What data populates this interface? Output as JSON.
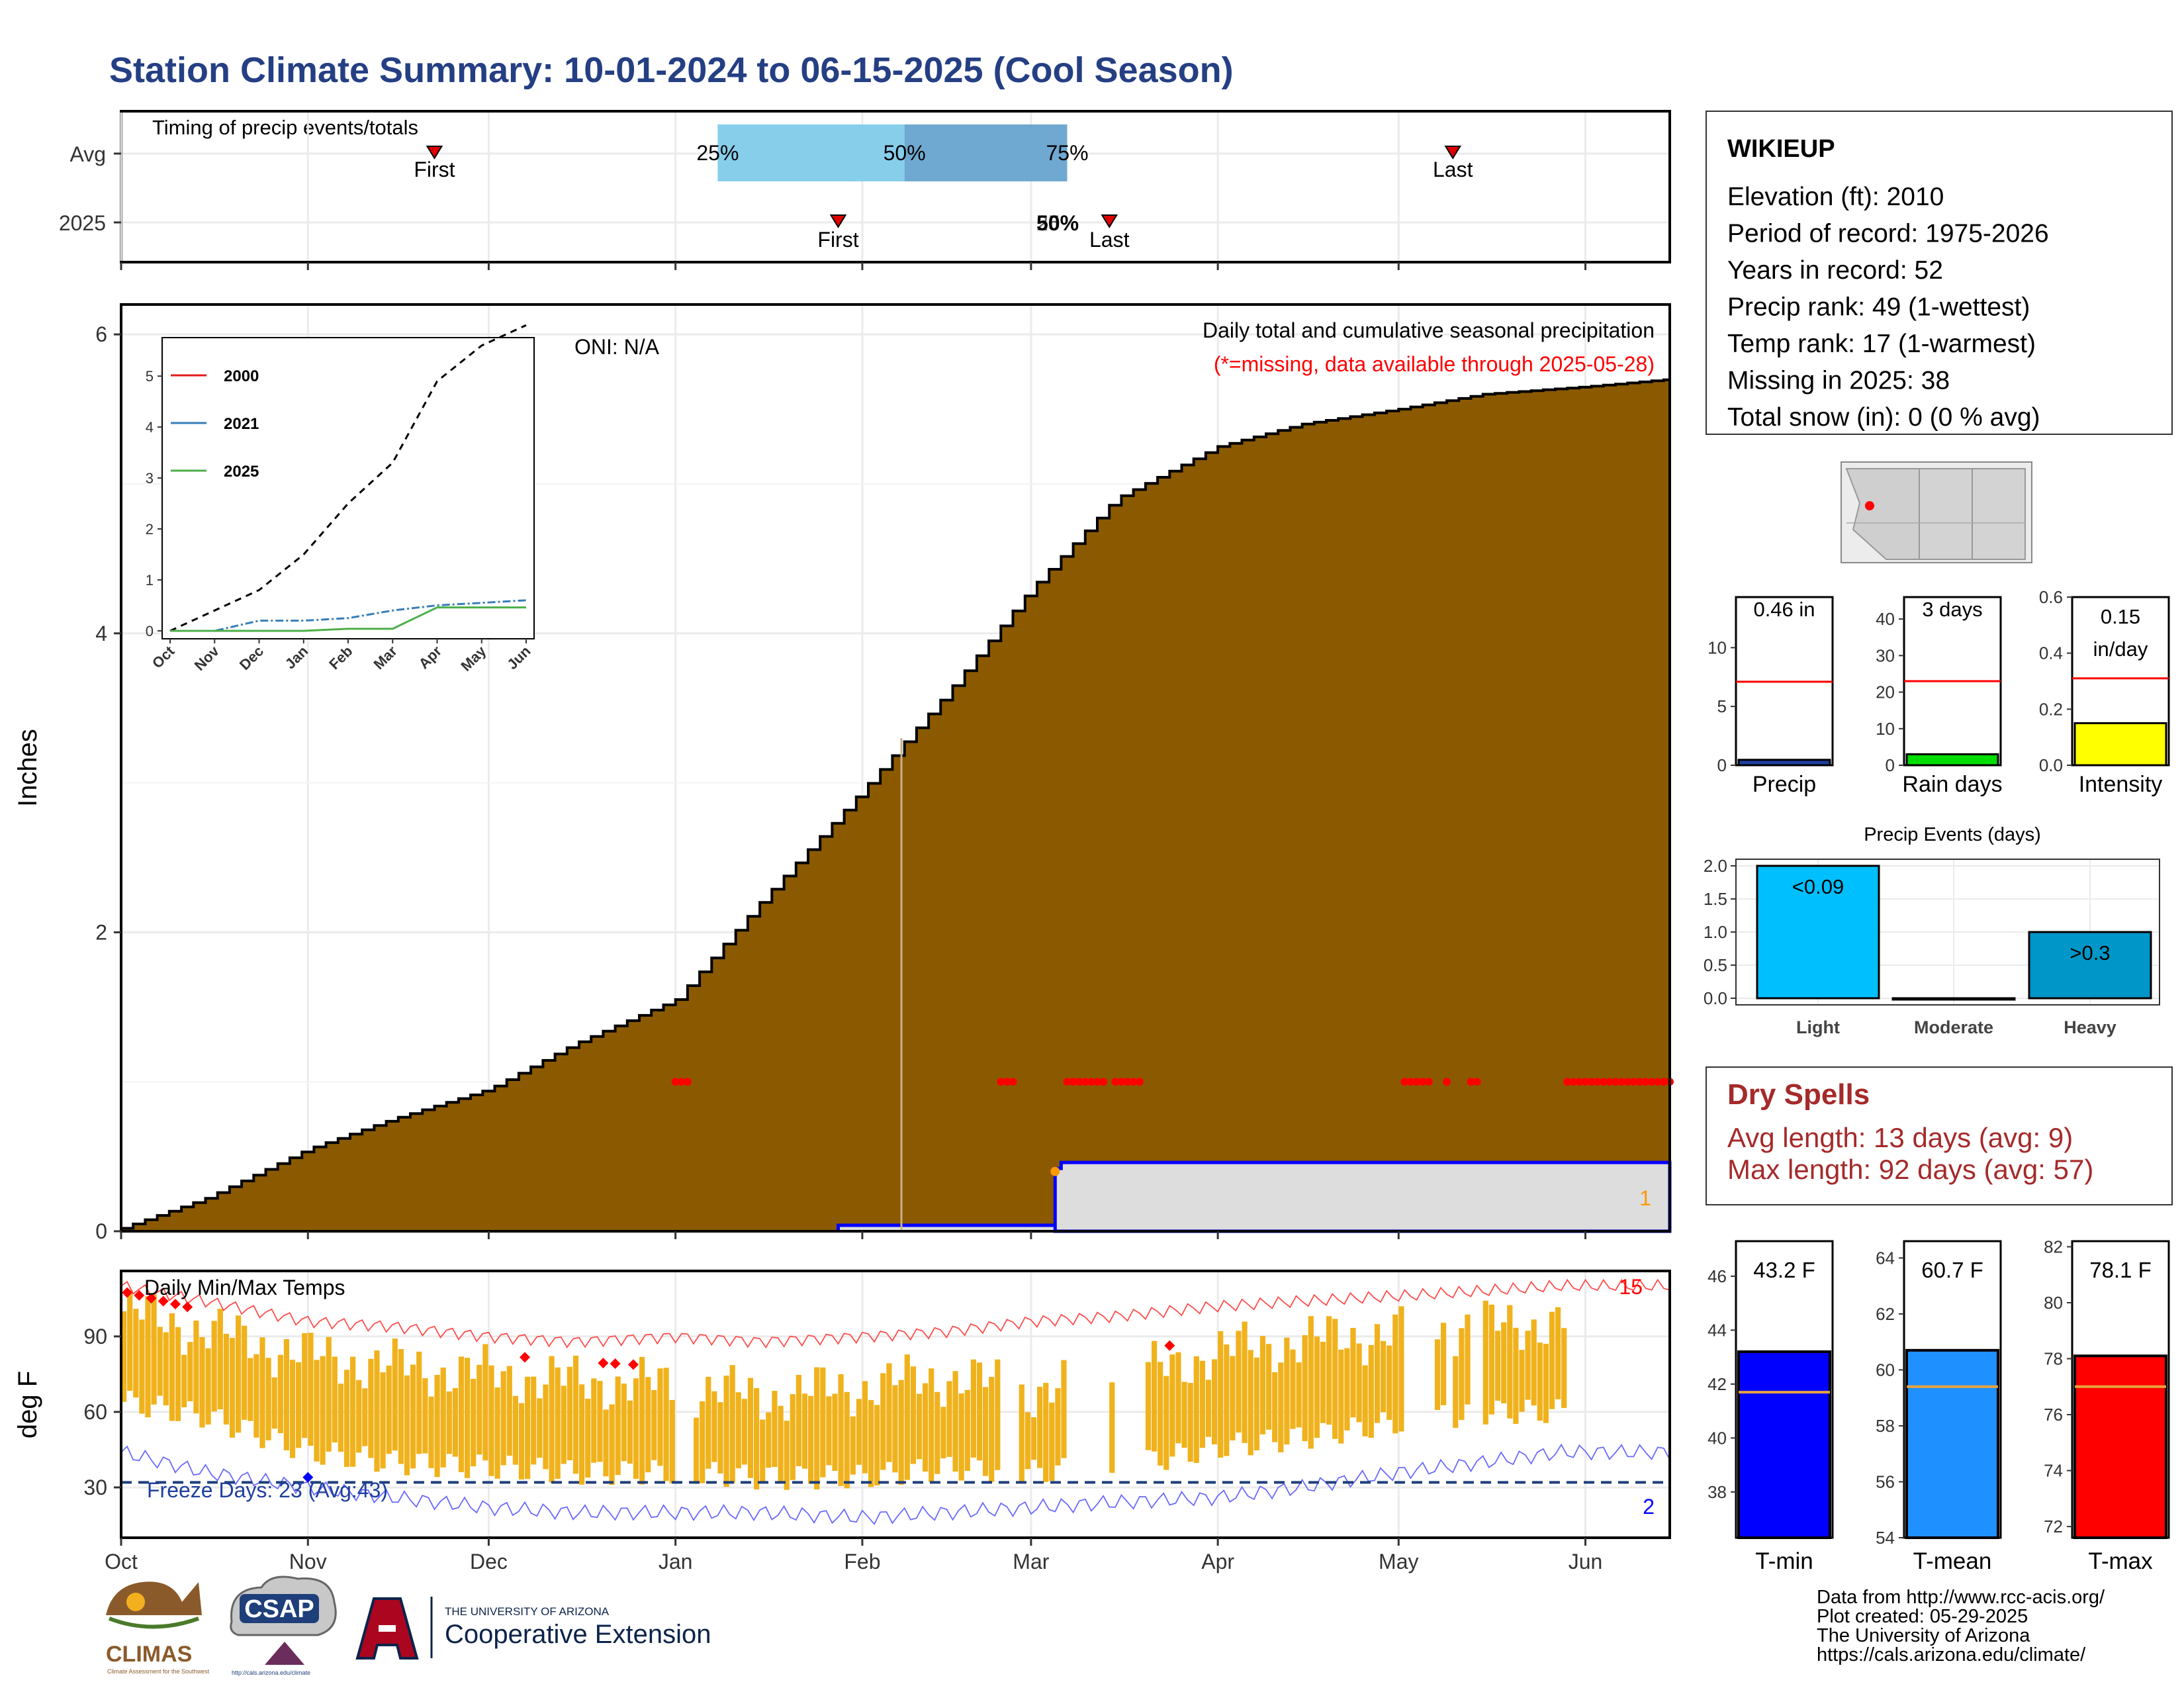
{
  "title": "Station Climate Summary: 10-01-2024 to 06-15-2025 (Cool Season)",
  "colors": {
    "title": "#253f84",
    "precip_fill": "#8b5a00",
    "dry_spell_title": "#a52a2a",
    "missing": "#ff0000",
    "avg_line": "#ff0000",
    "temp_bar": "#f0b21c",
    "record_high": "#ff0000",
    "record_low": "#0000ff",
    "freeze_line": "#1f3f7a",
    "blue_precip": "#0000ff",
    "light_blue_box": "#87ceeb",
    "mid_blue_box": "#6fa8d0"
  },
  "timing_panel": {
    "label": "Timing of precip events/totals",
    "rows": [
      "Avg",
      "2025"
    ],
    "avg": {
      "first_label": "First",
      "first_date": "2024-11-22",
      "last_label": "Last",
      "last_date": "2025-05-10",
      "q25": "2025-01-08",
      "q50": "2025-02-08",
      "q75": "2025-03-07",
      "q25_label": "25%",
      "q50_label": "50%",
      "q75_label": "75%"
    },
    "y2025": {
      "first_label": "First",
      "first_date": "2025-01-28",
      "last_label": "Last",
      "last_date": "2025-03-14",
      "overlap_label": "50%",
      "overlap_label2": "25%"
    }
  },
  "precip_panel": {
    "ylabel": "Inches",
    "subtitle": "Daily total and cumulative seasonal precipitation",
    "missing_note": "(*=missing, data available through 2025-05-28)",
    "oni": "ONI: N/A",
    "count_label": "1",
    "yticks": [
      "0",
      "2",
      "4",
      "6"
    ],
    "ylim": [
      0,
      6.2
    ]
  },
  "temp_panel": {
    "label": "Daily Min/Max Temps",
    "ylabel": "deg F",
    "yticks": [
      "30",
      "60",
      "90"
    ],
    "freeze_label": "Freeze Days: 23 (Avg:43)",
    "record_high_count": "15",
    "record_low_count": "2",
    "freeze_temp": 32,
    "ylim": [
      10,
      116
    ]
  },
  "x_axis": {
    "months": [
      "Oct",
      "Nov",
      "Dec",
      "Jan",
      "Feb",
      "Mar",
      "Apr",
      "May",
      "Jun"
    ],
    "start": "2024-10-01",
    "end": "2025-06-15"
  },
  "inset": {
    "legend": [
      "2000",
      "2021",
      "2025"
    ],
    "legend_colors": [
      "#e41a1c",
      "#377eb8",
      "#4daf4a"
    ],
    "months": [
      "Oct",
      "Nov",
      "Dec",
      "Jan",
      "Feb",
      "Mar",
      "Apr",
      "May",
      "Jun"
    ],
    "yticks": [
      "0",
      "1",
      "2",
      "3",
      "4",
      "5"
    ]
  },
  "station_box": {
    "name": "WIKIEUP",
    "lines": [
      "Elevation (ft): 2010",
      "Period of record: 1975-2026",
      "Years in record: 52",
      "Precip rank: 49 (1-wettest)",
      "Temp rank: 17 (1-warmest)",
      "Missing in 2025: 38",
      "Total snow (in): 0 (0 % avg)"
    ]
  },
  "summary_bars": [
    {
      "name": "Precip",
      "label": "0.46 in",
      "label2": "",
      "value": 0.46,
      "avg": 7.1,
      "ymax": 14.3,
      "yticks": [
        "0",
        "5",
        "10"
      ],
      "tick_values": [
        0,
        5,
        10
      ],
      "color": "#1f3f9f"
    },
    {
      "name": "Rain days",
      "label": "3 days",
      "label2": "",
      "value": 3,
      "avg": 23,
      "ymax": 46,
      "yticks": [
        "0",
        "10",
        "20",
        "30",
        "40"
      ],
      "tick_values": [
        0,
        10,
        20,
        30,
        40
      ],
      "color": "#00dd00"
    },
    {
      "name": "Intensity",
      "label": "0.15",
      "label2": "in/day",
      "value": 0.15,
      "avg": 0.31,
      "ymax": 0.6,
      "yticks": [
        "0.0",
        "0.2",
        "0.4",
        "0.6"
      ],
      "tick_values": [
        0,
        0.2,
        0.4,
        0.6
      ],
      "color": "#ffff00"
    }
  ],
  "precip_events": {
    "title": "Precip Events (days)",
    "categories": [
      "Light",
      "Moderate",
      "Heavy"
    ],
    "values": [
      2,
      0,
      1
    ],
    "labels": [
      "<0.09",
      "",
      ">0.3"
    ],
    "colors": [
      "#00bfff",
      "#000000",
      "#0096c8"
    ],
    "yticks": [
      "0.0",
      "0.5",
      "1.0",
      "1.5",
      "2.0"
    ],
    "ylim": [
      0,
      2.1
    ]
  },
  "dry_spells": {
    "title": "Dry Spells",
    "avg_line": "Avg length: 13 days (avg: 9)",
    "max_line": "Max length: 92 days (avg: 57)"
  },
  "temp_bars": [
    {
      "name": "T-min",
      "label": "43.2 F",
      "value": 43.2,
      "avg": 41.7,
      "ymin": 36.3,
      "ymax": 47.3,
      "yticks": [
        "38",
        "40",
        "42",
        "44",
        "46"
      ],
      "tick_values": [
        38,
        40,
        42,
        44,
        46
      ],
      "color": "#0000ff"
    },
    {
      "name": "T-mean",
      "label": "60.7 F",
      "value": 60.7,
      "avg": 59.4,
      "ymin": 54,
      "ymax": 64.6,
      "yticks": [
        "54",
        "56",
        "58",
        "60",
        "62",
        "64"
      ],
      "tick_values": [
        54,
        56,
        58,
        60,
        62,
        64
      ],
      "color": "#1e90ff"
    },
    {
      "name": "T-max",
      "label": "78.1 F",
      "value": 78.1,
      "avg": 77.0,
      "ymin": 71.6,
      "ymax": 82.2,
      "yticks": [
        "72",
        "74",
        "76",
        "78",
        "80",
        "82"
      ],
      "tick_values": [
        72,
        74,
        76,
        78,
        80,
        82
      ],
      "color": "#ff0000"
    }
  ],
  "footer": {
    "lines": [
      "Data from http://www.rcc-acis.org/",
      "Plot created: 05-29-2025",
      "The University of Arizona",
      "https://cals.arizona.edu/climate/"
    ],
    "climas": "CLIMAS",
    "climas_sub": "Climate Assessment for the Southwest",
    "csap": "CSAP",
    "csap_url": "http://cals.arizona.edu/climate",
    "ua_line1": "THE UNIVERSITY OF ARIZONA",
    "ua_line2": "Cooperative Extension"
  },
  "chart_data": [
    {
      "type": "area",
      "title": "Daily total and cumulative seasonal precipitation",
      "ylabel": "Inches",
      "ylim": [
        0,
        6.2
      ],
      "x": [
        "2024-10-01",
        "2024-10-15",
        "2024-11-01",
        "2024-11-15",
        "2024-12-01",
        "2024-12-15",
        "2025-01-01",
        "2025-01-15",
        "2025-02-01",
        "2025-02-15",
        "2025-03-01",
        "2025-03-15",
        "2025-04-01",
        "2025-04-15",
        "2025-05-01",
        "2025-05-15",
        "2025-06-01",
        "2025-06-15"
      ],
      "series": [
        {
          "name": "average cumulative",
          "values": [
            0.02,
            0.22,
            0.55,
            0.75,
            0.95,
            1.25,
            1.55,
            2.2,
            2.95,
            3.6,
            4.3,
            4.9,
            5.25,
            5.4,
            5.5,
            5.6,
            5.65,
            5.7
          ]
        },
        {
          "name": "2025 cumulative",
          "values": [
            0,
            0,
            0,
            0,
            0,
            0,
            0,
            0,
            0.04,
            0.04,
            0.04,
            0.46,
            0.46,
            0.46,
            0.46,
            0.46,
            0.46,
            0.46
          ]
        }
      ],
      "missing_dates": [
        "2025-01-01",
        "2025-01-02",
        "2025-01-03",
        "2025-02-24",
        "2025-02-25",
        "2025-02-26",
        "2025-03-07",
        "2025-03-08",
        "2025-03-09",
        "2025-03-10",
        "2025-03-11",
        "2025-03-12",
        "2025-03-13",
        "2025-03-15",
        "2025-03-16",
        "2025-03-17",
        "2025-03-18",
        "2025-03-19",
        "2025-05-02",
        "2025-05-03",
        "2025-05-04",
        "2025-05-05",
        "2025-05-06",
        "2025-05-09",
        "2025-05-13",
        "2025-05-14",
        "2025-05-29",
        "2025-05-30",
        "2025-05-31",
        "2025-06-01",
        "2025-06-02",
        "2025-06-03",
        "2025-06-04",
        "2025-06-05",
        "2025-06-06",
        "2025-06-07",
        "2025-06-08",
        "2025-06-09",
        "2025-06-10",
        "2025-06-11",
        "2025-06-12",
        "2025-06-13",
        "2025-06-14",
        "2025-06-15"
      ]
    },
    {
      "type": "bar",
      "title": "Daily Min/Max Temps",
      "ylabel": "deg F",
      "ylim": [
        10,
        116
      ],
      "x": [
        "2024-10-01",
        "2024-10-15",
        "2024-11-01",
        "2024-11-15",
        "2024-12-01",
        "2024-12-15",
        "2025-01-01",
        "2025-01-15",
        "2025-02-01",
        "2025-02-15",
        "2025-03-01",
        "2025-03-15",
        "2025-04-01",
        "2025-04-15",
        "2025-05-01",
        "2025-05-15",
        "2025-05-28"
      ],
      "series": [
        {
          "name": "daily max",
          "values": [
            100,
            92,
            82,
            78,
            75,
            72,
            70,
            66,
            70,
            74,
            68,
            72,
            84,
            88,
            92,
            94,
            96
          ]
        },
        {
          "name": "daily min",
          "values": [
            64,
            58,
            44,
            40,
            38,
            36,
            36,
            34,
            34,
            38,
            36,
            38,
            46,
            50,
            56,
            60,
            60
          ]
        },
        {
          "name": "record high",
          "values": [
            110,
            104,
            96,
            94,
            90,
            88,
            90,
            88,
            90,
            92,
            96,
            98,
            102,
            104,
            106,
            108,
            110
          ]
        },
        {
          "name": "record low",
          "values": [
            44,
            36,
            30,
            26,
            22,
            20,
            20,
            20,
            18,
            20,
            22,
            24,
            26,
            30,
            36,
            40,
            44
          ]
        }
      ]
    },
    {
      "type": "line",
      "title": "",
      "x": [
        "Oct",
        "Nov",
        "Dec",
        "Jan",
        "Feb",
        "Mar",
        "Apr",
        "May",
        "Jun"
      ],
      "ylim": [
        0,
        6
      ],
      "series": [
        {
          "name": "average",
          "values": [
            0,
            0.4,
            0.8,
            1.5,
            2.5,
            3.3,
            4.9,
            5.6,
            6.0
          ]
        },
        {
          "name": "2021",
          "values": [
            0,
            0,
            0.2,
            0.2,
            0.25,
            0.4,
            0.5,
            0.55,
            0.6
          ]
        },
        {
          "name": "2025",
          "values": [
            0,
            0,
            0,
            0,
            0.04,
            0.04,
            0.46,
            0.46,
            0.46
          ]
        }
      ]
    }
  ]
}
